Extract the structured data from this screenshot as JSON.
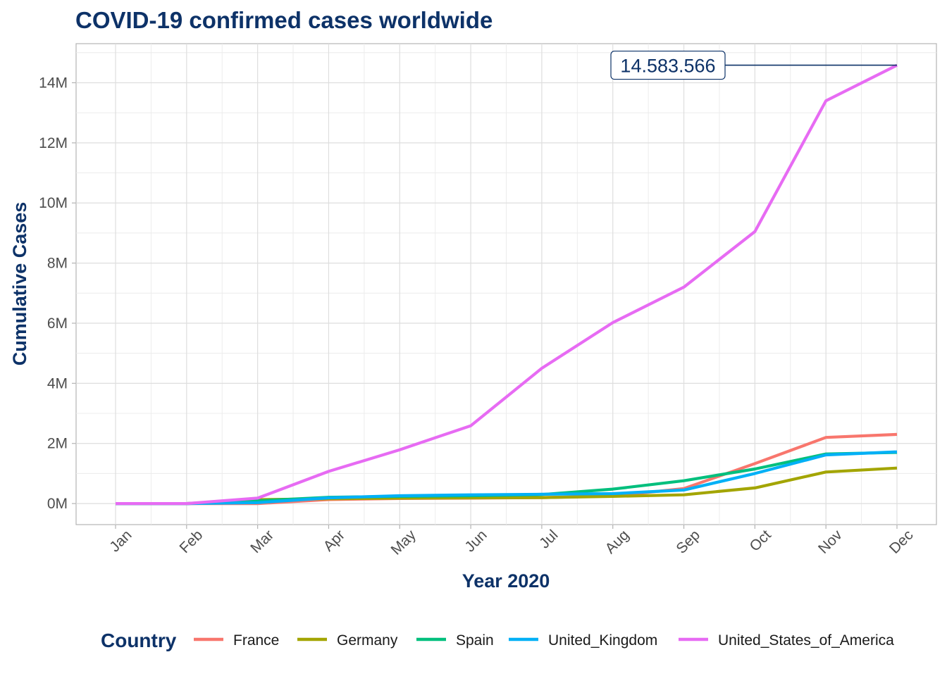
{
  "chart_data": {
    "type": "line",
    "title": "COVID-19 confirmed cases worldwide",
    "xlabel": "Year 2020",
    "ylabel": "Cumulative Cases",
    "categories": [
      "Jan",
      "Feb",
      "Mar",
      "Apr",
      "May",
      "Jun",
      "Jul",
      "Aug",
      "Sep",
      "Oct",
      "Nov",
      "Dec"
    ],
    "yticks": [
      0,
      2000000,
      4000000,
      6000000,
      8000000,
      10000000,
      12000000,
      14000000
    ],
    "ytick_labels": [
      "0M",
      "2M",
      "4M",
      "6M",
      "8M",
      "10M",
      "12M",
      "14M"
    ],
    "ylim": [
      -700000,
      15300000
    ],
    "grid": true,
    "legend": {
      "title": "Country",
      "position": "bottom"
    },
    "series": [
      {
        "name": "France",
        "color": "#F8766D",
        "values": [
          0,
          6,
          100,
          135000,
          170000,
          180000,
          200000,
          250000,
          500000,
          1330000,
          2200000,
          2300000
        ]
      },
      {
        "name": "Germany",
        "color": "#A3A500",
        "values": [
          0,
          10,
          130000,
          160000,
          180000,
          190000,
          200000,
          240000,
          290000,
          520000,
          1050000,
          1180000
        ]
      },
      {
        "name": "Spain",
        "color": "#00BF7D",
        "values": [
          0,
          8,
          90000,
          210000,
          240000,
          260000,
          300000,
          480000,
          760000,
          1150000,
          1650000,
          1700000
        ]
      },
      {
        "name": "United_Kingdom",
        "color": "#00B0F6",
        "values": [
          0,
          2,
          30000,
          190000,
          260000,
          290000,
          310000,
          330000,
          450000,
          1000000,
          1620000,
          1720000
        ]
      },
      {
        "name": "United_States_of_America",
        "color": "#E76BF3",
        "values": [
          0,
          8,
          180000,
          1070000,
          1790000,
          2590000,
          4500000,
          6020000,
          7200000,
          9050000,
          13400000,
          14583566
        ]
      }
    ],
    "annotations": [
      {
        "text": "14.583.566",
        "series": "United_States_of_America",
        "x": "Dec",
        "y": 14583566
      }
    ]
  }
}
